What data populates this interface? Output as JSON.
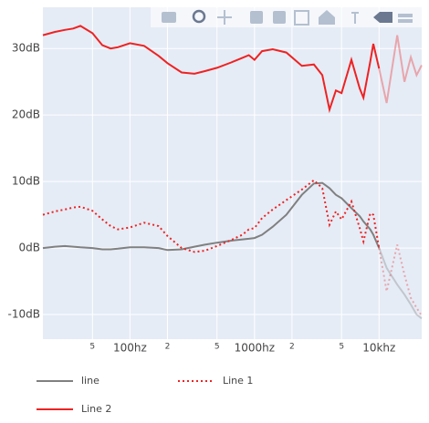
{
  "chart_data": {
    "type": "line",
    "x": [
      20,
      25,
      30,
      35,
      40,
      50,
      60,
      70,
      80,
      100,
      130,
      170,
      200,
      260,
      330,
      400,
      500,
      650,
      800,
      900,
      1000,
      1150,
      1400,
      1800,
      2400,
      3000,
      3500,
      4000,
      4500,
      5000,
      6000,
      7000,
      7500,
      8500,
      9000,
      10000,
      11500,
      14000,
      16000,
      18000,
      20000,
      22000
    ],
    "series": [
      {
        "name": "line",
        "color": "#808080",
        "dash": "solid",
        "values": [
          0,
          0.2,
          0.3,
          0.2,
          0.1,
          0,
          -0.2,
          -0.2,
          -0.1,
          0.1,
          0.1,
          0,
          -0.3,
          -0.2,
          0.2,
          0.5,
          0.8,
          1.1,
          1.3,
          1.4,
          1.5,
          2,
          3.2,
          5,
          8,
          9.7,
          9.8,
          9,
          8,
          7.5,
          6,
          4.8,
          4,
          2.8,
          2,
          0,
          -3,
          -5.5,
          -7,
          -8.5,
          -10,
          -10.6
        ]
      },
      {
        "name": "Line 1",
        "color": "#ee2222",
        "dash": "dot",
        "values": [
          5,
          5.5,
          5.8,
          6.1,
          6.2,
          5.6,
          4.3,
          3.3,
          2.8,
          3.1,
          3.8,
          3.3,
          1.8,
          0,
          -0.6,
          -0.4,
          0.3,
          1.2,
          2,
          2.8,
          3,
          4.5,
          5.8,
          7.2,
          8.8,
          10.2,
          9,
          3.5,
          5.5,
          4.3,
          7,
          3,
          1,
          5.2,
          5,
          0,
          -6.5,
          0.5,
          -4,
          -7.5,
          -9,
          -10.2
        ]
      },
      {
        "name": "Line 2",
        "color": "#ee2222",
        "dash": "solid",
        "values": [
          32,
          32.5,
          32.8,
          33,
          33.4,
          32.3,
          30.5,
          30,
          30.2,
          30.8,
          30.4,
          28.9,
          27.8,
          26.4,
          26.2,
          26.6,
          27.1,
          27.9,
          28.6,
          29,
          28.3,
          29.6,
          29.9,
          29.4,
          27.4,
          27.6,
          26,
          20.8,
          23.7,
          23.3,
          28.3,
          24,
          22.6,
          28,
          30.7,
          27,
          21.8,
          32,
          25,
          28.7,
          26,
          27.5
        ]
      }
    ],
    "xscale": "log",
    "xlim": [
      20,
      22000
    ],
    "xticks": [
      {
        "value": 50,
        "label": "5"
      },
      {
        "value": 100,
        "label": "100hz"
      },
      {
        "value": 200,
        "label": "2"
      },
      {
        "value": 500,
        "label": "5"
      },
      {
        "value": 1000,
        "label": "1000hz"
      },
      {
        "value": 2000,
        "label": "2"
      },
      {
        "value": 5000,
        "label": "5"
      },
      {
        "value": 10000,
        "label": "10khz"
      }
    ],
    "ylim": [
      -13.7,
      36.2
    ],
    "yticks": [
      {
        "value": -10,
        "label": "-10dB"
      },
      {
        "value": 0,
        "label": "0dB"
      },
      {
        "value": 10,
        "label": "10dB"
      },
      {
        "value": 20,
        "label": "20dB"
      },
      {
        "value": 30,
        "label": "30dB"
      }
    ],
    "grid": true,
    "faded_above": 10000,
    "legend": "bottom"
  }
}
